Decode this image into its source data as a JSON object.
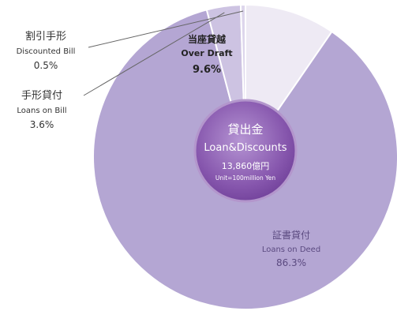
{
  "chart_data": {
    "type": "pie",
    "title": "",
    "center": {
      "title_ja": "貸出金",
      "title_en": "Loan&Discounts",
      "total": "13,860億円",
      "unit": "Unit=100million Yen"
    },
    "slices": [
      {
        "name_ja": "当座貸越",
        "name_en": "Over Draft",
        "value": 9.6,
        "label": "9.6%",
        "color": "#eeeaf4"
      },
      {
        "name_ja": "証書貸付",
        "name_en": "Loans on Deed",
        "value": 86.3,
        "label": "86.3%",
        "color": "#b4a6d3"
      },
      {
        "name_ja": "手形貸付",
        "name_en": "Loans on Bill",
        "value": 3.6,
        "label": "3.6%",
        "color": "#cdc3e2"
      },
      {
        "name_ja": "割引手形",
        "name_en": "Discounted Bill",
        "value": 0.5,
        "label": "0.5%",
        "color": "#ddd6ec"
      }
    ],
    "colors": {
      "slice_border": "#ffffff",
      "hub": "#8b5fb0",
      "hub_edge": "#b396cc",
      "hub_text": "#ffffff",
      "label_text": "#5b4a80",
      "outside_text": "#333333",
      "bold_label": "#222222",
      "leader": "#666666"
    }
  }
}
